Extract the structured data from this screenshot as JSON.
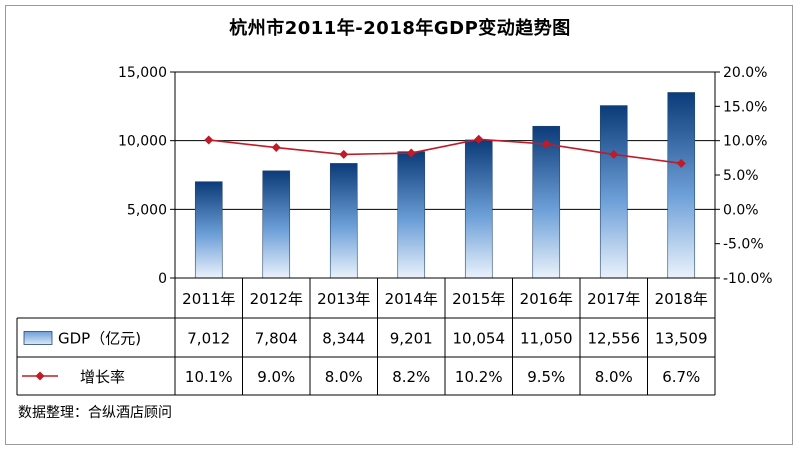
{
  "chart_data": {
    "type": "bar",
    "title": "杭州市2011年-2018年GDP变动趋势图",
    "categories": [
      "2011年",
      "2012年",
      "2013年",
      "2014年",
      "2015年",
      "2016年",
      "2017年",
      "2018年"
    ],
    "series": [
      {
        "name": "GDP（亿元)",
        "type": "bar",
        "axis": "left",
        "values": [
          7012,
          7804,
          8344,
          9201,
          10054,
          11050,
          12556,
          13509
        ],
        "labels": [
          "7,012",
          "7,804",
          "8,344",
          "9,201",
          "10,054",
          "11,050",
          "12,556",
          "13,509"
        ]
      },
      {
        "name": "增长率",
        "type": "line",
        "axis": "right",
        "values": [
          10.1,
          9.0,
          8.0,
          8.2,
          10.2,
          9.5,
          8.0,
          6.7
        ],
        "labels": [
          "10.1%",
          "9.0%",
          "8.0%",
          "8.2%",
          "10.2%",
          "9.5%",
          "8.0%",
          "6.7%"
        ]
      }
    ],
    "ylim_left": [
      0,
      15000
    ],
    "yticks_left": [
      "0",
      "5,000",
      "10,000",
      "15,000"
    ],
    "ylim_right": [
      -10,
      20
    ],
    "yticks_right": [
      "-10.0%",
      "-5.0%",
      "0.0%",
      "5.0%",
      "10.0%",
      "15.0%",
      "20.0%"
    ],
    "grid": true,
    "legend": "data-table",
    "colors": {
      "bar_top": "#0b3b78",
      "bar_bottom": "#eaf2fb",
      "line": "#c01b26",
      "grid": "#000000"
    }
  },
  "source": "数据整理：合纵酒店顾问"
}
